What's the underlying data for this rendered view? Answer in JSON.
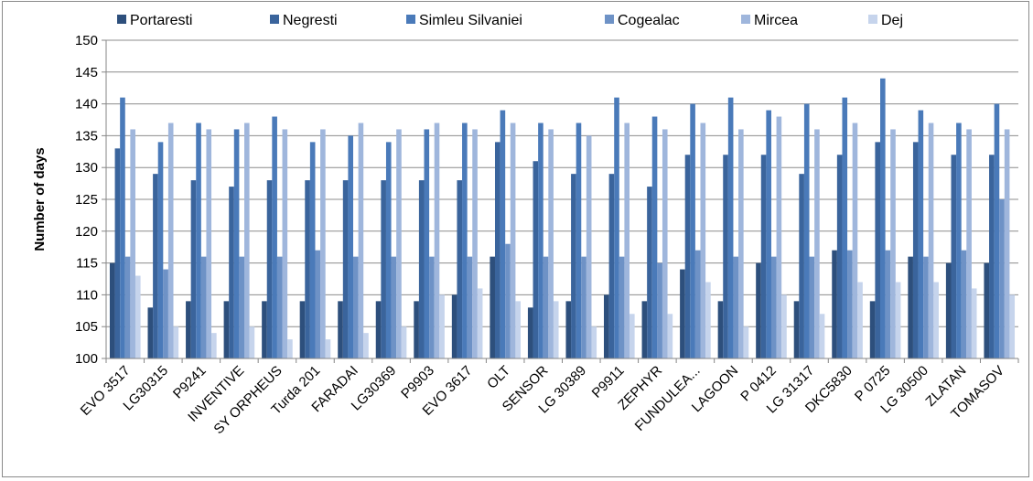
{
  "chart_data": {
    "type": "bar",
    "title": "",
    "xlabel": "",
    "ylabel": "Number of days",
    "ylim": [
      100,
      150
    ],
    "yticks": [
      100,
      105,
      110,
      115,
      120,
      125,
      130,
      135,
      140,
      145,
      150
    ],
    "grid": true,
    "legend_position": "top",
    "categories": [
      "EVO 3517",
      "LG30315",
      "P9241",
      "INVENTIVE",
      "SY ORPHEUS",
      "Turda 201",
      "FARADAI",
      "LG30369",
      "P9903",
      "EVO 3617",
      "OLT",
      "SENSOR",
      "LG 30389",
      "P9911",
      "ZEPHYR",
      "FUNDULEA...",
      "LAGOON",
      "P 0412",
      "LG 31317",
      "DKC5830",
      "P 0725",
      "LG 30500",
      "ZLATAN",
      "TOMASOV"
    ],
    "series": [
      {
        "name": "Portaresti",
        "color": "#2d4f7c",
        "values": [
          115,
          108,
          109,
          109,
          109,
          109,
          109,
          109,
          109,
          110,
          116,
          108,
          109,
          110,
          109,
          114,
          109,
          115,
          109,
          117,
          109,
          116,
          115,
          115
        ]
      },
      {
        "name": "Negresti",
        "color": "#3a649c",
        "values": [
          133,
          129,
          128,
          127,
          128,
          128,
          128,
          128,
          128,
          128,
          134,
          131,
          129,
          129,
          127,
          132,
          132,
          132,
          129,
          132,
          134,
          134,
          132,
          132
        ]
      },
      {
        "name": "Simleu Silvaniei",
        "color": "#4a7ab9",
        "values": [
          141,
          134,
          137,
          136,
          138,
          134,
          135,
          134,
          136,
          137,
          139,
          137,
          137,
          141,
          138,
          140,
          141,
          139,
          140,
          141,
          144,
          139,
          137,
          140
        ]
      },
      {
        "name": "Cogealac",
        "color": "#6e92c6",
        "values": [
          116,
          114,
          116,
          116,
          116,
          117,
          116,
          116,
          116,
          116,
          118,
          116,
          116,
          116,
          115,
          117,
          116,
          116,
          116,
          117,
          117,
          116,
          117,
          125
        ]
      },
      {
        "name": "Mircea",
        "color": "#9fb6dc",
        "values": [
          136,
          137,
          136,
          137,
          136,
          136,
          137,
          136,
          137,
          136,
          137,
          136,
          135,
          137,
          136,
          137,
          136,
          138,
          136,
          137,
          136,
          137,
          136,
          136
        ]
      },
      {
        "name": "Dej",
        "color": "#c6d4ec",
        "values": [
          113,
          105,
          104,
          105,
          103,
          103,
          104,
          105,
          110,
          111,
          109,
          109,
          105,
          107,
          107,
          112,
          105,
          110,
          107,
          112,
          112,
          112,
          111,
          110
        ]
      }
    ]
  }
}
